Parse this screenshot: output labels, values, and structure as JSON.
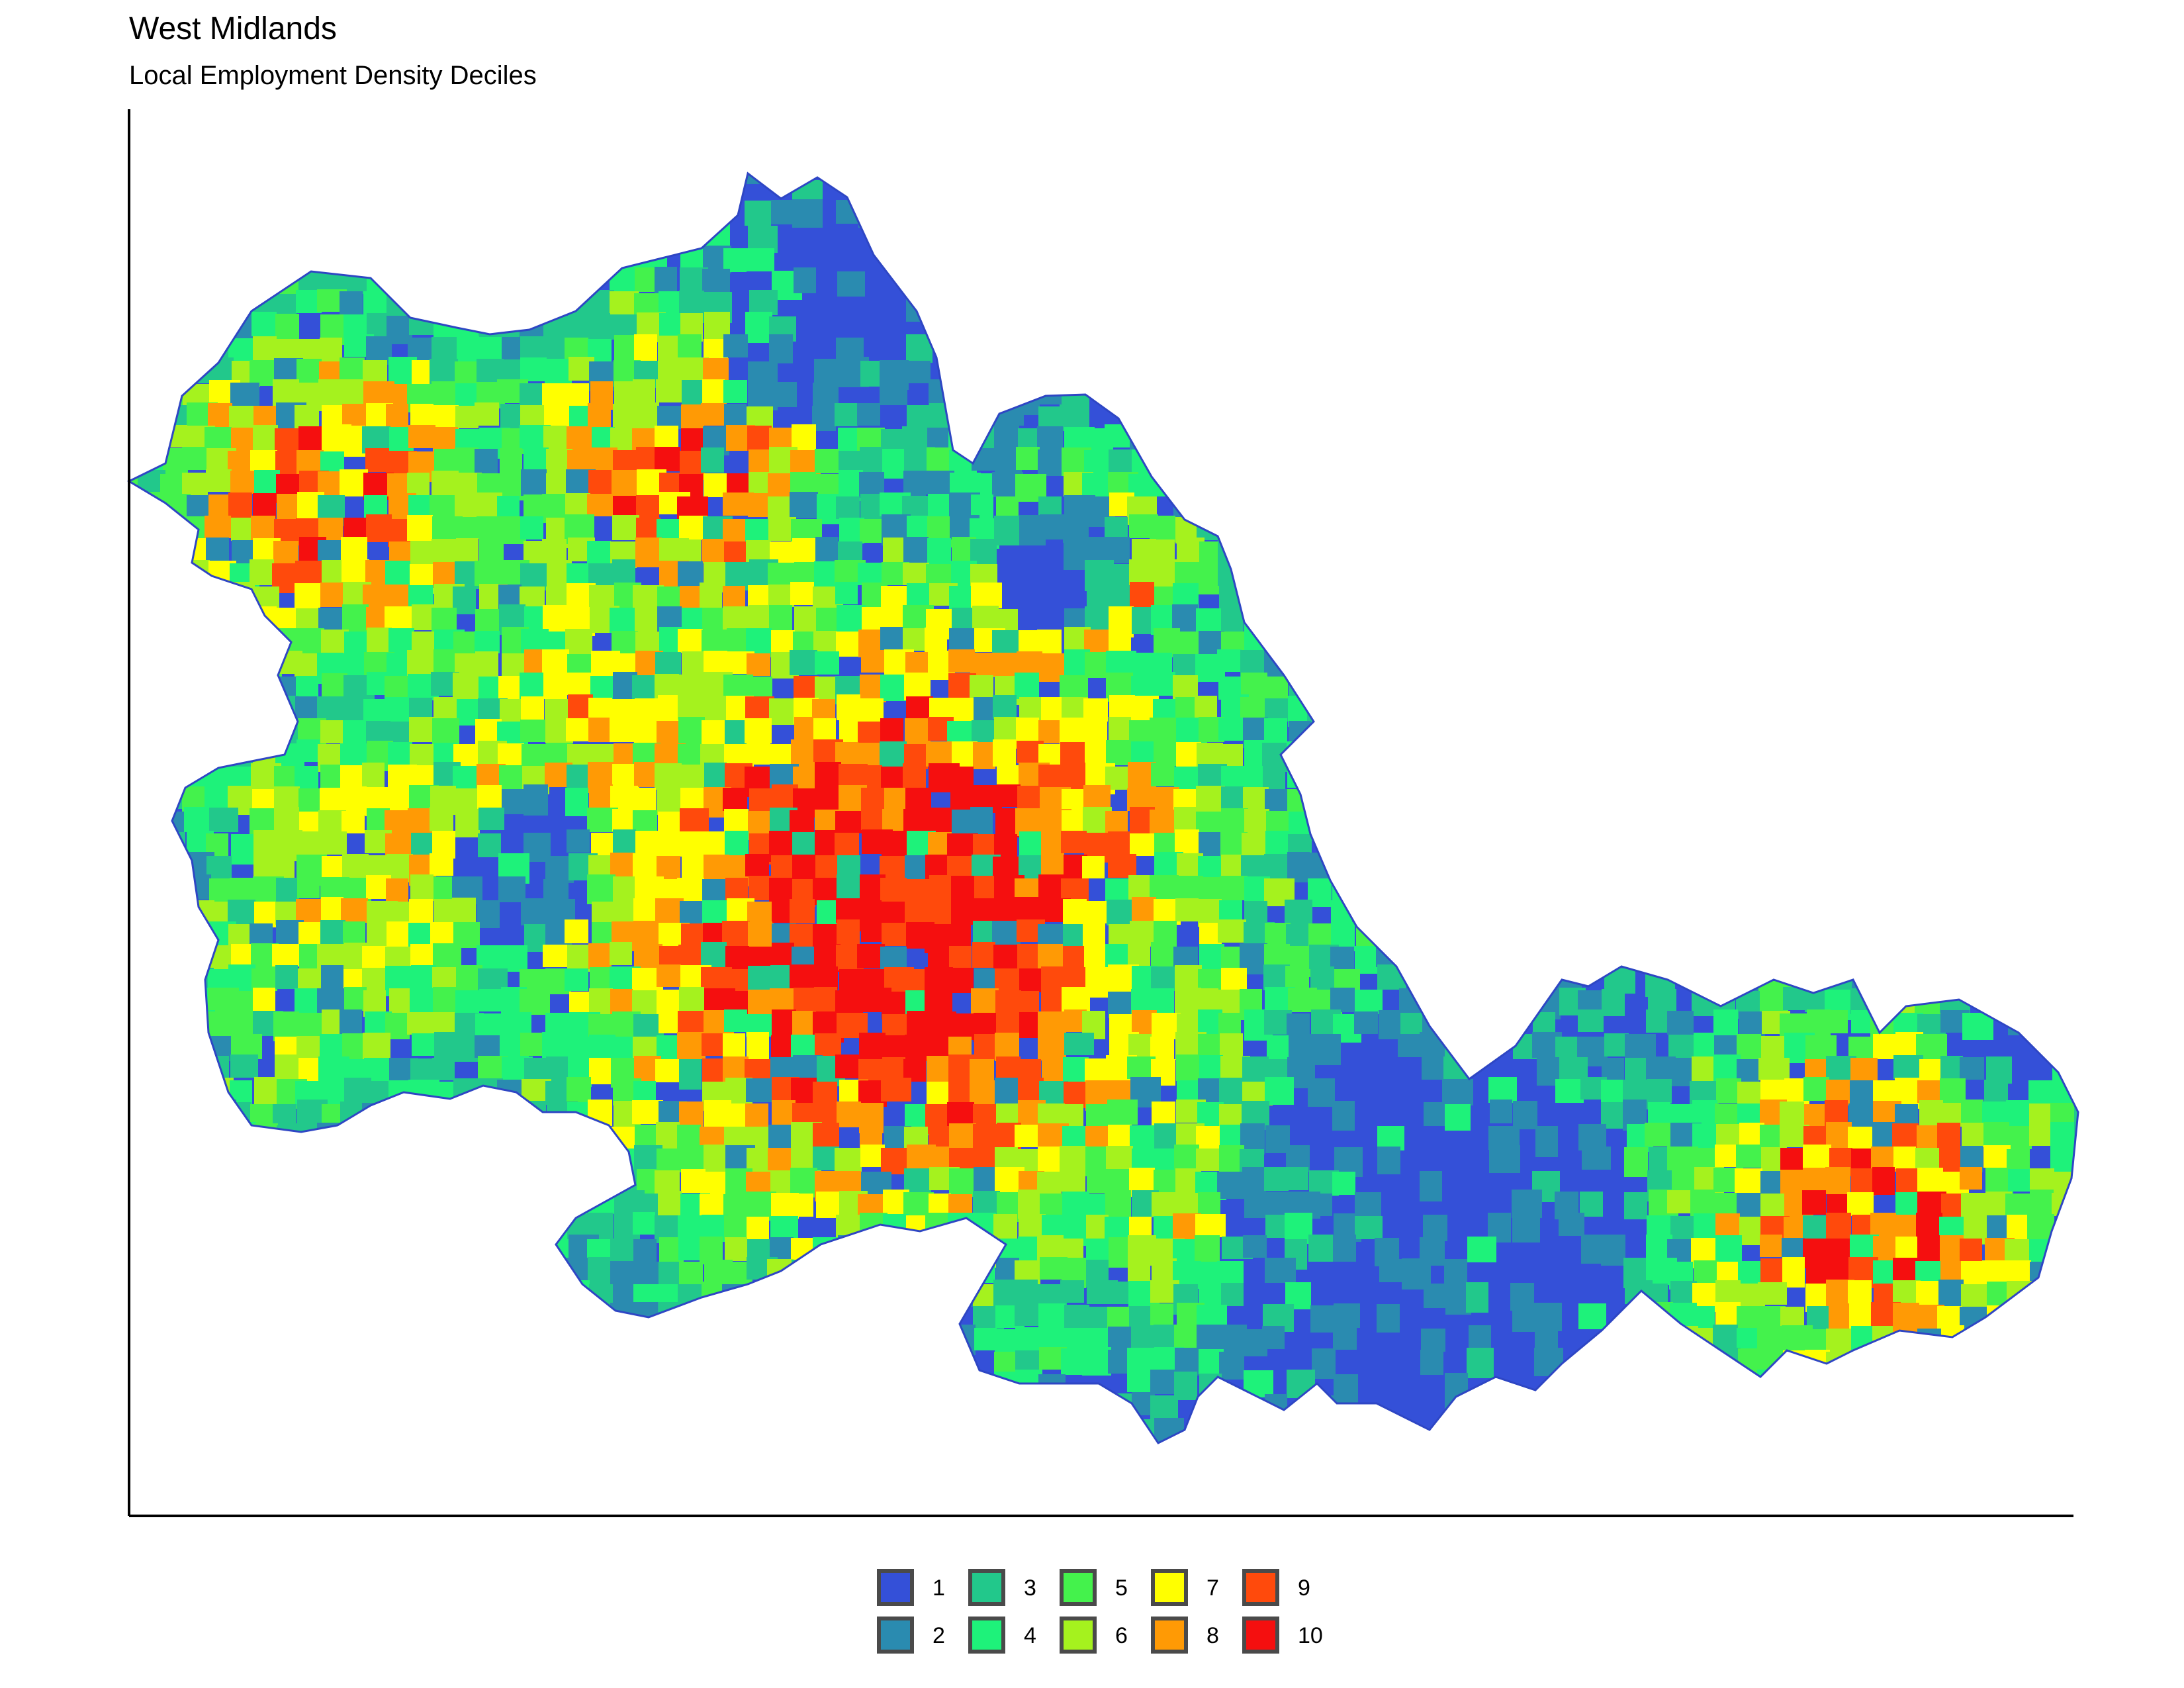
{
  "title": "West Midlands",
  "subtitle": "Local Employment Density Deciles",
  "legend": {
    "items": [
      {
        "label": "1",
        "color": "#3450D8"
      },
      {
        "label": "2",
        "color": "#2A8BB0"
      },
      {
        "label": "3",
        "color": "#22C88B"
      },
      {
        "label": "4",
        "color": "#1EF27A"
      },
      {
        "label": "5",
        "color": "#44F24C"
      },
      {
        "label": "6",
        "color": "#A5F21E"
      },
      {
        "label": "7",
        "color": "#FFFF00"
      },
      {
        "label": "8",
        "color": "#FF9A05"
      },
      {
        "label": "9",
        "color": "#FF4A0C"
      },
      {
        "label": "10",
        "color": "#F50F0F"
      }
    ]
  }
}
